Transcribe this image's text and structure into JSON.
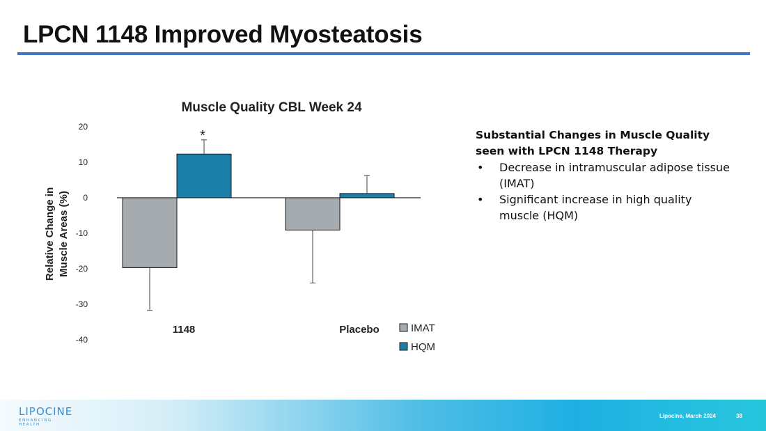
{
  "slide": {
    "title": "LPCN 1148 Improved Myosteatosis",
    "footer_text": "Lipocine, March 2024",
    "page_number": "38",
    "logo_word": "LIPOCINE",
    "logo_tagline": "ENHANCING HEALTH"
  },
  "side_panel": {
    "heading_line1": "Substantial Changes in Muscle Quality",
    "heading_line2": "seen with LPCN 1148 Therapy",
    "bullet_char": "•",
    "bullets": [
      {
        "line1": "Decrease in intramuscular adipose tissue",
        "line2": "(IMAT)"
      },
      {
        "line1": "Significant increase in high quality",
        "line2": "muscle (HQM)"
      }
    ]
  },
  "colors": {
    "imat": "#a5abae",
    "hqm": "#1a7ea9",
    "rule": "#4472c4"
  },
  "chart_data": {
    "type": "bar",
    "title": "Muscle Quality CBL Week 24",
    "ylabel_line1": "Relative Change in",
    "ylabel_line2": "Muscle Areas (%)",
    "categories": [
      "1148",
      "Placebo"
    ],
    "series": [
      {
        "name": "IMAT",
        "values": [
          -19.7,
          -9.1
        ],
        "error_lower": [
          -31.7,
          -24.0
        ]
      },
      {
        "name": "HQM",
        "values": [
          12.3,
          1.2
        ],
        "error_upper": [
          16.3,
          6.2
        ]
      }
    ],
    "annotations": [
      {
        "category": "1148",
        "series": "HQM",
        "text": "*"
      }
    ],
    "ylim": [
      -40,
      20
    ],
    "yticks": [
      20,
      10,
      0,
      -10,
      -20,
      -30,
      -40
    ],
    "grid": false,
    "legend_position": "bottom-right"
  }
}
